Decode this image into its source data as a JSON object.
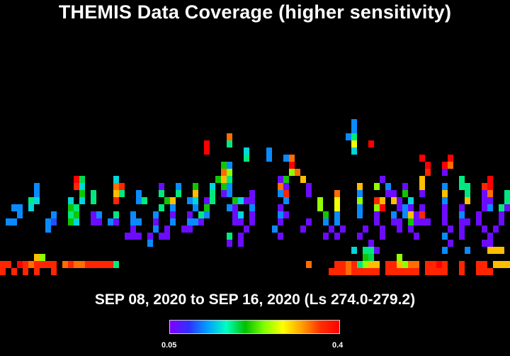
{
  "title": "THEMIS Data Coverage (higher sensitivity)",
  "subtitle": "SEP 08, 2020 to SEP 16, 2020 (Ls 274.0-279.2)",
  "colorbar": {
    "min_label": "0.05",
    "max_label": "0.4",
    "colors": [
      "#8000ff",
      "#3030ff",
      "#00a0ff",
      "#00ffc0",
      "#00c000",
      "#80ff00",
      "#ffff00",
      "#ffa000",
      "#ff3000",
      "#ff0000"
    ]
  },
  "chart_data": {
    "type": "heatmap",
    "title": "THEMIS Data Coverage (higher sensitivity)",
    "subtitle": "SEP 08, 2020 to SEP 16, 2020 (Ls 274.0-279.2)",
    "value_range": [
      0.05,
      0.4
    ],
    "grid": false,
    "cell_size": "8x10",
    "note_columns": "90 columns x 24 rows, row 0 = top",
    "cells": [
      [
        0,
        38,
        0.37
      ],
      [
        1,
        38,
        0.37
      ],
      [
        3,
        38,
        0.4
      ],
      [
        4,
        38,
        0.37
      ],
      [
        5,
        38,
        0.34
      ],
      [
        6,
        38,
        0.37
      ],
      [
        7,
        38,
        0.37
      ],
      [
        8,
        38,
        0.37
      ],
      [
        9,
        38,
        0.37
      ],
      [
        11,
        38,
        0.34
      ],
      [
        12,
        38,
        0.37
      ],
      [
        13,
        38,
        0.34
      ],
      [
        14,
        38,
        0.34
      ],
      [
        15,
        38,
        0.37
      ],
      [
        16,
        38,
        0.37
      ],
      [
        17,
        38,
        0.37
      ],
      [
        18,
        38,
        0.37
      ],
      [
        19,
        38,
        0.37
      ],
      [
        20,
        38,
        0.18
      ],
      [
        54,
        38,
        0.34
      ],
      [
        59,
        38,
        0.37
      ],
      [
        60,
        38,
        0.37
      ],
      [
        61,
        38,
        0.34
      ],
      [
        62,
        38,
        0.37
      ],
      [
        63,
        38,
        0.18
      ],
      [
        64,
        38,
        0.25
      ],
      [
        65,
        38,
        0.31
      ],
      [
        66,
        38,
        0.31
      ],
      [
        68,
        38,
        0.37
      ],
      [
        69,
        38,
        0.37
      ],
      [
        70,
        38,
        0.31
      ],
      [
        71,
        38,
        0.25
      ],
      [
        72,
        38,
        0.34
      ],
      [
        73,
        38,
        0.34
      ],
      [
        75,
        38,
        0.37
      ],
      [
        76,
        38,
        0.37
      ],
      [
        77,
        38,
        0.4
      ],
      [
        78,
        38,
        0.37
      ],
      [
        81,
        38,
        0.37
      ],
      [
        84,
        38,
        0.37
      ],
      [
        85,
        38,
        0.37
      ],
      [
        87,
        38,
        0.31
      ],
      [
        88,
        38,
        0.31
      ],
      [
        89,
        38,
        0.31
      ],
      [
        0,
        39,
        0.37
      ],
      [
        2,
        39,
        0.37
      ],
      [
        4,
        39,
        0.37
      ],
      [
        6,
        39,
        0.37
      ],
      [
        9,
        39,
        0.37
      ],
      [
        58,
        39,
        0.37
      ],
      [
        59,
        39,
        0.37
      ],
      [
        60,
        39,
        0.37
      ],
      [
        61,
        39,
        0.34
      ],
      [
        62,
        39,
        0.37
      ],
      [
        63,
        39,
        0.37
      ],
      [
        64,
        39,
        0.37
      ],
      [
        65,
        39,
        0.37
      ],
      [
        66,
        39,
        0.37
      ],
      [
        68,
        39,
        0.37
      ],
      [
        69,
        39,
        0.37
      ],
      [
        70,
        39,
        0.37
      ],
      [
        71,
        39,
        0.37
      ],
      [
        72,
        39,
        0.37
      ],
      [
        73,
        39,
        0.37
      ],
      [
        75,
        39,
        0.37
      ],
      [
        76,
        39,
        0.37
      ],
      [
        77,
        39,
        0.37
      ],
      [
        78,
        39,
        0.37
      ],
      [
        81,
        39,
        0.37
      ],
      [
        84,
        39,
        0.37
      ],
      [
        85,
        39,
        0.37
      ],
      [
        86,
        39,
        0.37
      ],
      [
        6,
        37,
        0.31
      ],
      [
        7,
        37,
        0.25
      ],
      [
        64,
        37,
        0.21
      ],
      [
        65,
        37,
        0.19
      ],
      [
        70,
        37,
        0.25
      ],
      [
        62,
        36,
        0.15
      ],
      [
        64,
        36,
        0.18
      ],
      [
        65,
        36,
        0.18
      ],
      [
        66,
        36,
        0.06
      ],
      [
        86,
        36,
        0.31
      ],
      [
        87,
        36,
        0.31
      ],
      [
        88,
        36,
        0.31
      ],
      [
        62,
        18,
        0.12
      ],
      [
        62,
        19,
        0.12
      ],
      [
        61,
        20,
        0.12
      ],
      [
        62,
        20,
        0.18
      ],
      [
        62,
        21,
        0.28
      ],
      [
        62,
        22,
        0.15
      ],
      [
        65,
        21,
        0.4
      ],
      [
        36,
        21,
        0.4
      ],
      [
        36,
        22,
        0.4
      ],
      [
        40,
        20,
        0.34
      ],
      [
        40,
        21,
        0.18
      ],
      [
        43,
        22,
        0.15
      ],
      [
        43,
        23,
        0.18
      ],
      [
        47,
        22,
        0.12
      ],
      [
        47,
        23,
        0.12
      ],
      [
        51,
        23,
        0.34
      ],
      [
        51,
        24,
        0.4
      ],
      [
        50,
        23,
        0.12
      ],
      [
        79,
        23,
        0.4
      ],
      [
        79,
        24,
        0.34
      ],
      [
        78,
        24,
        0.4
      ],
      [
        13,
        26,
        0.4
      ],
      [
        13,
        27,
        0.37
      ],
      [
        14,
        26,
        0.19
      ],
      [
        14,
        27,
        0.15
      ],
      [
        14,
        28,
        0.21
      ],
      [
        14,
        29,
        0.15
      ],
      [
        20,
        26,
        0.15
      ],
      [
        20,
        27,
        0.34
      ],
      [
        21,
        27,
        0.37
      ],
      [
        20,
        28,
        0.31
      ],
      [
        21,
        28,
        0.18
      ],
      [
        20,
        29,
        0.37
      ],
      [
        6,
        27,
        0.12
      ],
      [
        6,
        28,
        0.12
      ],
      [
        6,
        29,
        0.15
      ],
      [
        5,
        29,
        0.18
      ],
      [
        5,
        30,
        0.15
      ],
      [
        2,
        30,
        0.12
      ],
      [
        3,
        30,
        0.12
      ],
      [
        3,
        31,
        0.12
      ],
      [
        2,
        32,
        0.12
      ],
      [
        1,
        32,
        0.12
      ],
      [
        16,
        28,
        0.18
      ],
      [
        16,
        29,
        0.18
      ],
      [
        12,
        29,
        0.15
      ],
      [
        12,
        30,
        0.21
      ],
      [
        13,
        30,
        0.18
      ],
      [
        12,
        31,
        0.18
      ],
      [
        13,
        31,
        0.21
      ],
      [
        12,
        32,
        0.21
      ],
      [
        13,
        32,
        0.15
      ],
      [
        9,
        31,
        0.12
      ],
      [
        9,
        32,
        0.1
      ],
      [
        8,
        32,
        0.12
      ],
      [
        8,
        33,
        0.12
      ],
      [
        16,
        31,
        0.06
      ],
      [
        16,
        32,
        0.06
      ],
      [
        17,
        32,
        0.06
      ],
      [
        17,
        31,
        0.12
      ],
      [
        19,
        32,
        0.12
      ],
      [
        20,
        31,
        0.18
      ],
      [
        20,
        32,
        0.06
      ],
      [
        24,
        28,
        0.12
      ],
      [
        24,
        29,
        0.12
      ],
      [
        25,
        29,
        0.18
      ],
      [
        23,
        31,
        0.12
      ],
      [
        23,
        32,
        0.12
      ],
      [
        24,
        32,
        0.12
      ],
      [
        23,
        33,
        0.06
      ],
      [
        22,
        34,
        0.06
      ],
      [
        23,
        34,
        0.06
      ],
      [
        24,
        34,
        0.06
      ],
      [
        28,
        27,
        0.06
      ],
      [
        28,
        28,
        0.18
      ],
      [
        29,
        29,
        0.21
      ],
      [
        28,
        30,
        0.18
      ],
      [
        27,
        31,
        0.12
      ],
      [
        27,
        32,
        0.06
      ],
      [
        27,
        33,
        0.12
      ],
      [
        26,
        34,
        0.06
      ],
      [
        26,
        35,
        0.12
      ],
      [
        31,
        27,
        0.12
      ],
      [
        31,
        28,
        0.18
      ],
      [
        30,
        29,
        0.31
      ],
      [
        30,
        30,
        0.12
      ],
      [
        30,
        31,
        0.06
      ],
      [
        30,
        32,
        0.12
      ],
      [
        29,
        33,
        0.06
      ],
      [
        28,
        34,
        0.06
      ],
      [
        29,
        34,
        0.06
      ],
      [
        34,
        27,
        0.21
      ],
      [
        34,
        28,
        0.31
      ],
      [
        34,
        29,
        0.15
      ],
      [
        33,
        29,
        0.12
      ],
      [
        34,
        30,
        0.12
      ],
      [
        33,
        31,
        0.06
      ],
      [
        33,
        32,
        0.12
      ],
      [
        32,
        33,
        0.06
      ],
      [
        33,
        33,
        0.06
      ],
      [
        37,
        27,
        0.15
      ],
      [
        37,
        28,
        0.18
      ],
      [
        36,
        29,
        0.06
      ],
      [
        37,
        29,
        0.18
      ],
      [
        36,
        30,
        0.21
      ],
      [
        36,
        31,
        0.12
      ],
      [
        35,
        31,
        0.18
      ],
      [
        35,
        32,
        0.06
      ],
      [
        34,
        32,
        0.12
      ],
      [
        38,
        26,
        0.21
      ],
      [
        39,
        26,
        0.31
      ],
      [
        39,
        27,
        0.21
      ],
      [
        40,
        28,
        0.12
      ],
      [
        39,
        28,
        0.06
      ],
      [
        41,
        29,
        0.21
      ],
      [
        42,
        29,
        0.15
      ],
      [
        40,
        30,
        0.12
      ],
      [
        41,
        30,
        0.06
      ],
      [
        41,
        31,
        0.06
      ],
      [
        42,
        31,
        0.15
      ],
      [
        41,
        32,
        0.06
      ],
      [
        42,
        32,
        0.06
      ],
      [
        43,
        33,
        0.06
      ],
      [
        42,
        34,
        0.06
      ],
      [
        42,
        35,
        0.06
      ],
      [
        40,
        35,
        0.06
      ],
      [
        40,
        34,
        0.18
      ],
      [
        39,
        25,
        0.34
      ],
      [
        40,
        25,
        0.25
      ],
      [
        40,
        24,
        0.12
      ],
      [
        39,
        24,
        0.21
      ],
      [
        40,
        26,
        0.18
      ],
      [
        40,
        27,
        0.12
      ],
      [
        44,
        28,
        0.06
      ],
      [
        43,
        29,
        0.06
      ],
      [
        44,
        29,
        0.06
      ],
      [
        44,
        30,
        0.12
      ],
      [
        44,
        31,
        0.06
      ],
      [
        44,
        32,
        0.06
      ],
      [
        49,
        26,
        0.06
      ],
      [
        50,
        27,
        0.06
      ],
      [
        50,
        26,
        0.21
      ],
      [
        49,
        27,
        0.34
      ],
      [
        50,
        28,
        0.37
      ],
      [
        49,
        28,
        0.12
      ],
      [
        50,
        29,
        0.12
      ],
      [
        49,
        30,
        0.06
      ],
      [
        49,
        31,
        0.12
      ],
      [
        50,
        31,
        0.06
      ],
      [
        49,
        32,
        0.06
      ],
      [
        48,
        33,
        0.12
      ],
      [
        49,
        34,
        0.06
      ],
      [
        51,
        25,
        0.25
      ],
      [
        52,
        25,
        0.34
      ],
      [
        53,
        26,
        0.31
      ],
      [
        54,
        27,
        0.06
      ],
      [
        54,
        28,
        0.06
      ],
      [
        54,
        32,
        0.06
      ],
      [
        53,
        33,
        0.06
      ],
      [
        56,
        29,
        0.25
      ],
      [
        56,
        30,
        0.25
      ],
      [
        57,
        31,
        0.21
      ],
      [
        57,
        32,
        0.12
      ],
      [
        58,
        33,
        0.06
      ],
      [
        57,
        34,
        0.06
      ],
      [
        59,
        29,
        0.28
      ],
      [
        59,
        30,
        0.28
      ],
      [
        59,
        31,
        0.12
      ],
      [
        59,
        32,
        0.12
      ],
      [
        60,
        33,
        0.06
      ],
      [
        59,
        34,
        0.06
      ],
      [
        63,
        27,
        0.31
      ],
      [
        63,
        28,
        0.12
      ],
      [
        63,
        29,
        0.25
      ],
      [
        63,
        30,
        0.12
      ],
      [
        63,
        31,
        0.12
      ],
      [
        64,
        33,
        0.06
      ],
      [
        63,
        34,
        0.06
      ],
      [
        65,
        35,
        0.06
      ],
      [
        66,
        27,
        0.25
      ],
      [
        67,
        26,
        0.06
      ],
      [
        67,
        29,
        0.31
      ],
      [
        66,
        29,
        0.37
      ],
      [
        66,
        30,
        0.25
      ],
      [
        67,
        30,
        0.4
      ],
      [
        66,
        31,
        0.06
      ],
      [
        66,
        32,
        0.06
      ],
      [
        67,
        33,
        0.06
      ],
      [
        67,
        34,
        0.06
      ],
      [
        68,
        27,
        0.12
      ],
      [
        68,
        28,
        0.06
      ],
      [
        69,
        28,
        0.06
      ],
      [
        69,
        29,
        0.31
      ],
      [
        70,
        29,
        0.06
      ],
      [
        70,
        30,
        0.06
      ],
      [
        69,
        31,
        0.12
      ],
      [
        69,
        32,
        0.06
      ],
      [
        70,
        32,
        0.06
      ],
      [
        70,
        33,
        0.06
      ],
      [
        71,
        27,
        0.06
      ],
      [
        71,
        28,
        0.21
      ],
      [
        72,
        29,
        0.15
      ],
      [
        71,
        30,
        0.12
      ],
      [
        72,
        30,
        0.06
      ],
      [
        71,
        31,
        0.12
      ],
      [
        72,
        31,
        0.31
      ],
      [
        72,
        32,
        0.21
      ],
      [
        72,
        33,
        0.06
      ],
      [
        73,
        34,
        0.06
      ],
      [
        74,
        26,
        0.31
      ],
      [
        74,
        27,
        0.31
      ],
      [
        74,
        28,
        0.06
      ],
      [
        74,
        30,
        0.06
      ],
      [
        73,
        31,
        0.06
      ],
      [
        74,
        31,
        0.37
      ],
      [
        73,
        32,
        0.06
      ],
      [
        74,
        32,
        0.06
      ],
      [
        75,
        32,
        0.06
      ],
      [
        78,
        27,
        0.12
      ],
      [
        78,
        28,
        0.31
      ],
      [
        78,
        29,
        0.12
      ],
      [
        78,
        30,
        0.06
      ],
      [
        78,
        31,
        0.06
      ],
      [
        78,
        32,
        0.06
      ],
      [
        79,
        33,
        0.06
      ],
      [
        78,
        34,
        0.12
      ],
      [
        79,
        35,
        0.06
      ],
      [
        78,
        36,
        0.12
      ],
      [
        81,
        27,
        0.18
      ],
      [
        82,
        28,
        0.18
      ],
      [
        82,
        29,
        0.31
      ],
      [
        81,
        30,
        0.06
      ],
      [
        81,
        31,
        0.12
      ],
      [
        81,
        32,
        0.06
      ],
      [
        82,
        32,
        0.06
      ],
      [
        81,
        33,
        0.06
      ],
      [
        81,
        34,
        0.06
      ],
      [
        82,
        36,
        0.12
      ],
      [
        85,
        27,
        0.37
      ],
      [
        86,
        27,
        0.4
      ],
      [
        85,
        28,
        0.06
      ],
      [
        86,
        28,
        0.34
      ],
      [
        85,
        29,
        0.06
      ],
      [
        86,
        29,
        0.06
      ],
      [
        85,
        30,
        0.06
      ],
      [
        86,
        30,
        0.12
      ],
      [
        84,
        31,
        0.06
      ],
      [
        84,
        32,
        0.06
      ],
      [
        85,
        33,
        0.06
      ],
      [
        86,
        34,
        0.06
      ],
      [
        85,
        35,
        0.06
      ],
      [
        89,
        28,
        0.18
      ],
      [
        89,
        29,
        0.18
      ],
      [
        88,
        30,
        0.18
      ],
      [
        89,
        30,
        0.06
      ],
      [
        88,
        31,
        0.06
      ],
      [
        88,
        32,
        0.06
      ],
      [
        87,
        33,
        0.06
      ],
      [
        86,
        35,
        0.06
      ],
      [
        75,
        25,
        0.37
      ],
      [
        74,
        23,
        0.4
      ],
      [
        75,
        24,
        0.4
      ],
      [
        78,
        25,
        0.06
      ],
      [
        81,
        26,
        0.18
      ],
      [
        82,
        27,
        0.18
      ],
      [
        86,
        26,
        0.4
      ],
      [
        59,
        28,
        0.34
      ]
    ]
  }
}
